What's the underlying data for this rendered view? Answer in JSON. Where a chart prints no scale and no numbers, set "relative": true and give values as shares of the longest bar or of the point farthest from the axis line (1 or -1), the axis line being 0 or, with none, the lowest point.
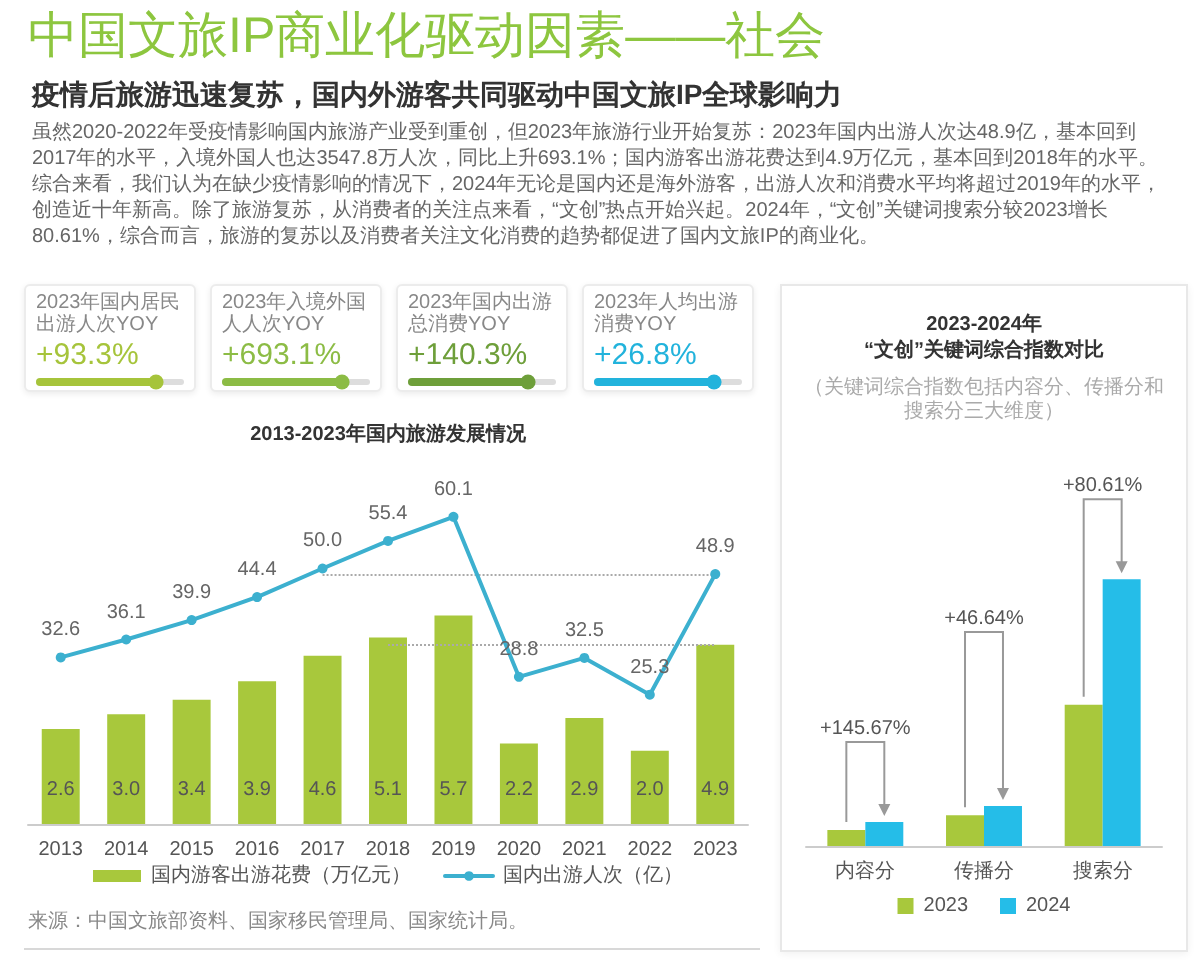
{
  "chart_data": [
    {
      "type": "other",
      "title": "中国文旅IP商业化驱动因素——社会",
      "subtitle": "疫情后旅游迅速复苏，国内外游客共同驱动中国文旅IP全球影响力",
      "annotations": [
        "虽然2020-2022年受疫情影响国内旅游产业受到重创，但2023年旅游行业开始复苏：2023年国内出游人次达48.9亿，基本回到2017年的水平，入境外国人也达3547.8万人次，同比上升693.1%；国内游客出游花费达到4.9万亿元，基本回到2018年的水平。综合来看，我们认为在缺少疫情影响的情况下，2024年无论是国内还是海外游客，出游人次和消费水平均将超过2019年的水平，创造近十年新高。除了旅游复苏，从消费者的关注点来看，“文创”热点开始兴起。2024年，“文创”关键词搜索分较2023增长80.61%，综合而言，旅游的复苏以及消费者关注文化消费的趋势都促进了国内文旅IP的商业化。"
      ],
      "categories": [
        "2023年国内居民出游人次YOY",
        "2023年入境外国人人次YOY",
        "2023年国内出游总消费YOY",
        "2023年人均出游消费YOY"
      ],
      "value_labels": [
        "+93.3%",
        "+693.1%",
        "+140.3%",
        "+26.8%"
      ],
      "colors": [
        "#a6c43b",
        "#8cbc45",
        "#6e9f3a",
        "#22b3dc"
      ]
    },
    {
      "type": "bar",
      "title": "2013-2023年国内旅游发展情况",
      "categories": [
        "2013",
        "2014",
        "2015",
        "2016",
        "2017",
        "2018",
        "2019",
        "2020",
        "2021",
        "2022",
        "2023"
      ],
      "series": [
        {
          "name": "国内游客出游花费（万亿元）",
          "color": "#a8c83c",
          "values": [
            2.6,
            3.0,
            3.4,
            3.9,
            4.6,
            5.1,
            5.7,
            2.2,
            2.9,
            2.0,
            4.9
          ],
          "value_labels": [
            "2.6",
            "3.0",
            "3.4",
            "3.9",
            "4.6",
            "5.1",
            "5.7",
            "2.2",
            "2.9",
            "2.0",
            "4.9"
          ]
        },
        {
          "name": "国内出游人次（亿）",
          "type": "line",
          "axis": "y2",
          "color": "#3cb0cf",
          "values": [
            32.6,
            36.1,
            39.9,
            44.4,
            50.0,
            55.4,
            60.1,
            28.8,
            32.5,
            25.3,
            48.9
          ],
          "value_labels": [
            "32.6",
            "36.1",
            "39.9",
            "44.4",
            "50.0",
            "55.4",
            "60.1",
            "28.8",
            "32.5",
            "25.3",
            "48.9"
          ]
        }
      ],
      "marker": "circle",
      "legend": "bottom",
      "tick_labels": "x",
      "ref_lines": [
        {
          "axis": "y",
          "value": 4.9,
          "color": "#aaaaaa",
          "line_style": "dotted"
        },
        {
          "axis": "y2",
          "value": 48.9,
          "color": "#aaaaaa",
          "line_style": "dotted"
        }
      ],
      "annotations": [
        "来源：中国文旅部资料、国家移民管理局、国家统计局。"
      ]
    },
    {
      "type": "bar",
      "title": "2023-2024年\n“文创”关键词综合指数对比",
      "subtitle": "（关键词综合指数包括内容分、传播分和搜索分三大维度）",
      "categories": [
        "内容分",
        "传播分",
        "搜索分"
      ],
      "series": [
        {
          "name": "2023",
          "color": "#a8c83c",
          "values": [
            0.06,
            0.115,
            0.53
          ]
        },
        {
          "name": "2024",
          "color": "#25bde8",
          "values": [
            0.09,
            0.15,
            1
          ]
        }
      ],
      "relative": true,
      "legend": "bottom",
      "annotations": [
        "+145.67%",
        "+46.64%",
        "+80.61%"
      ]
    }
  ]
}
